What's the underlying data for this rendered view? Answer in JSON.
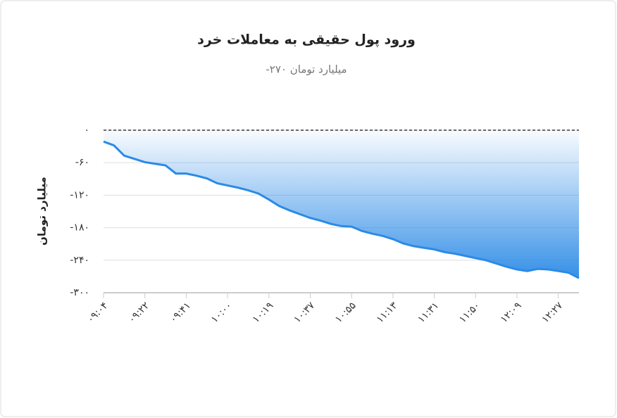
{
  "chart_data": {
    "type": "area",
    "title": "ورود پول حقیقی به معاملات خرد",
    "subtitle": "میلیارد تومان ۲۷۰-",
    "y_label": "میلیارد تومان",
    "color": "#2b8ae6",
    "categories": [
      "۰۹:۰۴",
      null,
      null,
      null,
      "۰۹:۲۲",
      null,
      null,
      null,
      "۰۹:۴۱",
      null,
      null,
      null,
      "۱۰:۰۰",
      null,
      null,
      null,
      "۱۰:۱۹",
      null,
      null,
      null,
      "۱۰:۳۷",
      null,
      null,
      null,
      "۱۰:۵۵",
      null,
      null,
      null,
      "۱۱:۱۳",
      null,
      null,
      null,
      "۱۱:۳۱",
      null,
      null,
      null,
      "۱۱:۵۰",
      null,
      null,
      null,
      "۱۲:۰۹",
      null,
      null,
      null,
      "۱۲:۲۷",
      null,
      null
    ],
    "values": [
      -21,
      -28,
      -47,
      -53,
      -59,
      -62,
      -65,
      -80,
      -80,
      -84,
      -89,
      -98,
      -102,
      -106,
      -111,
      -117,
      -128,
      -140,
      -148,
      -155,
      -162,
      -167,
      -173,
      -177,
      -178,
      -186,
      -191,
      -195,
      -201,
      -209,
      -214,
      -217,
      -220,
      -225,
      -228,
      -232,
      -236,
      -240,
      -246,
      -252,
      -257,
      -260,
      -256,
      -257,
      -260,
      -263,
      -273
    ],
    "ylim": [
      -300,
      0
    ],
    "yticks": [
      {
        "value": 0,
        "label": "۰"
      },
      {
        "value": -60,
        "label": "-۶۰"
      },
      {
        "value": -120,
        "label": "-۱۲۰"
      },
      {
        "value": -180,
        "label": "-۱۸۰"
      },
      {
        "value": -240,
        "label": "-۲۴۰"
      },
      {
        "value": -300,
        "label": "-۳۰۰"
      }
    ],
    "zero_line": 0,
    "grid": true
  }
}
